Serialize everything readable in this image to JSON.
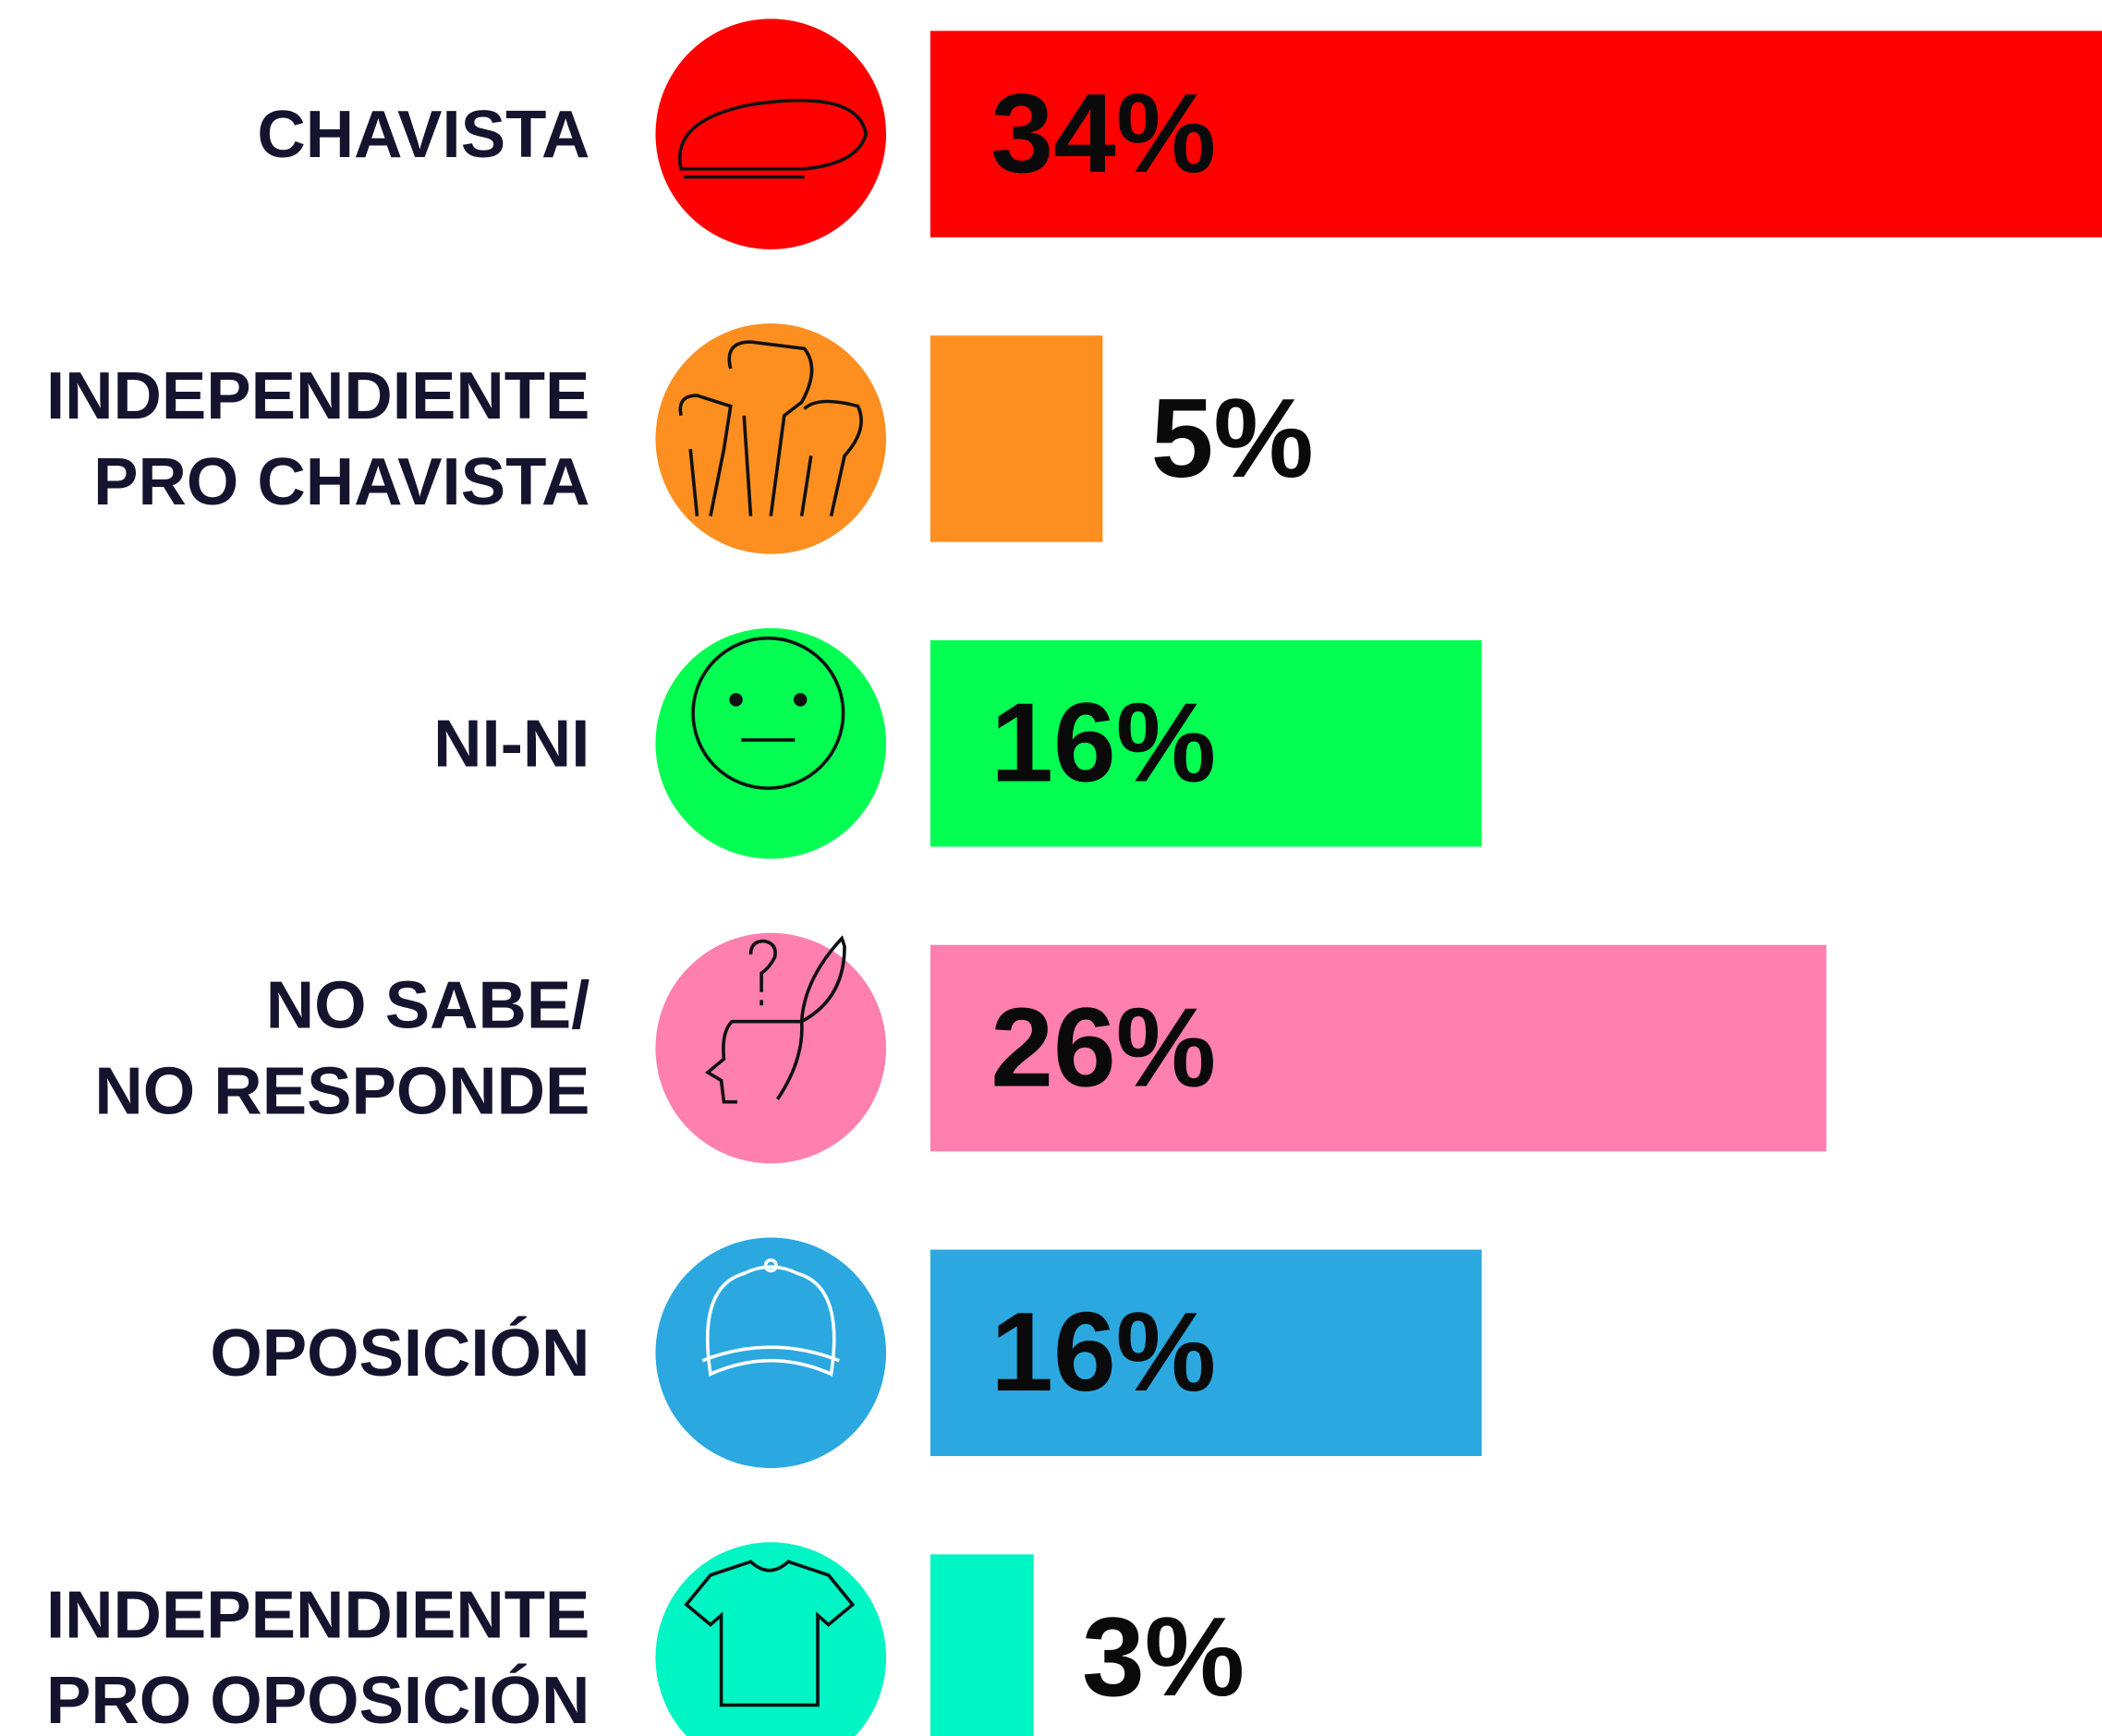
{
  "chart_data": {
    "type": "bar",
    "orientation": "horizontal",
    "categories": [
      "CHAVISTA",
      "INDEPENDIENTE\nPRO CHAVISTA",
      "NI-NI",
      "NO SABE/\nNO RESPONDE",
      "OPOSICIÓN",
      "INDEPENDIENTE\nPRO OPOSICIÓN"
    ],
    "values": [
      34,
      5,
      16,
      26,
      16,
      3
    ],
    "value_labels": [
      "34%",
      "5%",
      "16%",
      "26%",
      "16%",
      "3%"
    ],
    "colors": [
      "#ff0000",
      "#fd8f21",
      "#04ff52",
      "#ff7fae",
      "#2ba8e0",
      "#00f5c4"
    ]
  }
}
